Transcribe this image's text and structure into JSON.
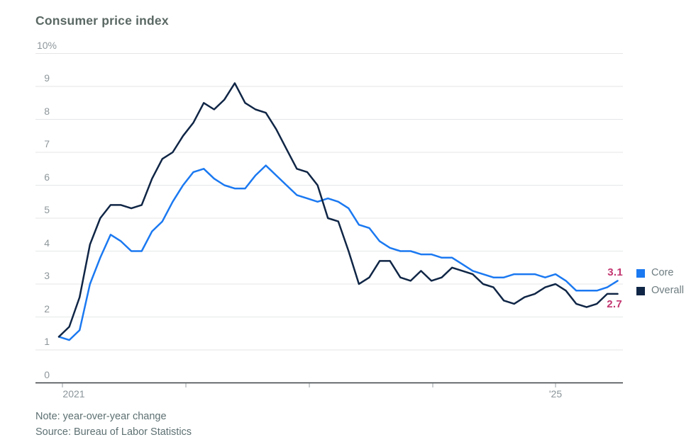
{
  "note": "Note: year-over-year change",
  "source": "Source: Bureau of Labor Statistics",
  "chart_data": {
    "type": "line",
    "title": "Consumer price index",
    "x_unit": "month",
    "x_start": "2021-01",
    "x_end": "2025-07",
    "x_tick_labels": [
      "2021",
      "'25"
    ],
    "y_tick_labels": [
      "10%",
      "9",
      "8",
      "7",
      "6",
      "5",
      "4",
      "3",
      "2",
      "1",
      "0"
    ],
    "ylim": [
      0,
      10
    ],
    "grid": true,
    "legend_position": "right",
    "end_label_color": "#c2356f",
    "series": [
      {
        "name": "Core",
        "color": "#1b79f1",
        "end_label": "3.1",
        "values": [
          1.4,
          1.3,
          1.6,
          3.0,
          3.8,
          4.5,
          4.3,
          4.0,
          4.0,
          4.6,
          4.9,
          5.5,
          6.0,
          6.4,
          6.5,
          6.2,
          6.0,
          5.9,
          5.9,
          6.3,
          6.6,
          6.3,
          6.0,
          5.7,
          5.6,
          5.5,
          5.6,
          5.5,
          5.3,
          4.8,
          4.7,
          4.3,
          4.1,
          4.0,
          4.0,
          3.9,
          3.9,
          3.8,
          3.8,
          3.6,
          3.4,
          3.3,
          3.2,
          3.2,
          3.3,
          3.3,
          3.3,
          3.2,
          3.3,
          3.1,
          2.8,
          2.8,
          2.8,
          2.9,
          3.1
        ]
      },
      {
        "name": "Overall",
        "color": "#102646",
        "end_label": "2.7",
        "values": [
          1.4,
          1.7,
          2.6,
          4.2,
          5.0,
          5.4,
          5.4,
          5.3,
          5.4,
          6.2,
          6.8,
          7.0,
          7.5,
          7.9,
          8.5,
          8.3,
          8.6,
          9.1,
          8.5,
          8.3,
          8.2,
          7.7,
          7.1,
          6.5,
          6.4,
          6.0,
          5.0,
          4.9,
          4.0,
          3.0,
          3.2,
          3.7,
          3.7,
          3.2,
          3.1,
          3.4,
          3.1,
          3.2,
          3.5,
          3.4,
          3.3,
          3.0,
          2.9,
          2.5,
          2.4,
          2.6,
          2.7,
          2.9,
          3.0,
          2.8,
          2.4,
          2.3,
          2.4,
          2.7,
          2.7
        ]
      }
    ]
  }
}
